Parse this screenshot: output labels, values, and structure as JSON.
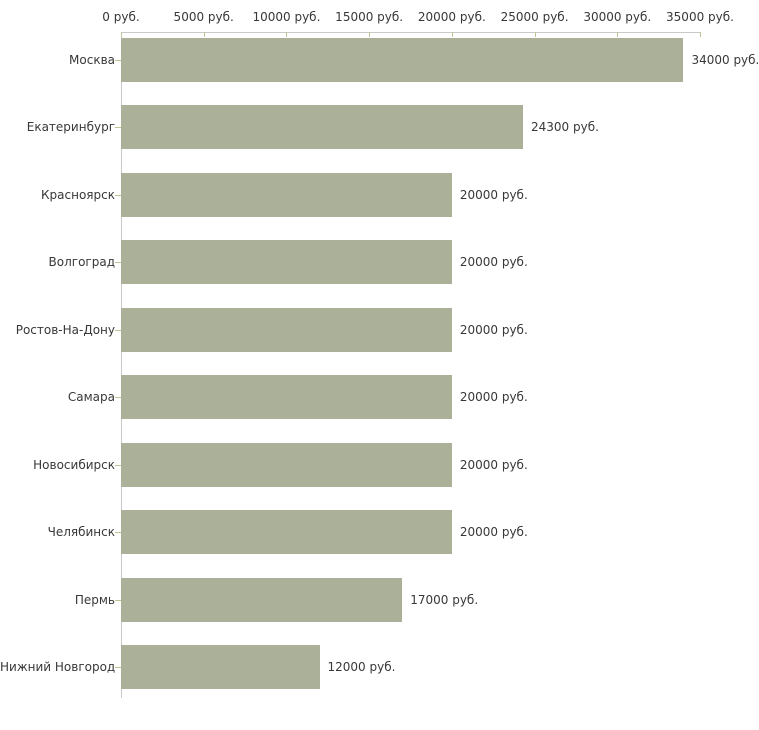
{
  "chart_data": {
    "type": "bar",
    "orientation": "horizontal",
    "title": "",
    "xlabel": "",
    "ylabel": "",
    "categories": [
      "Москва",
      "Екатеринбург",
      "Красноярск",
      "Волгоград",
      "Ростов-На-Дону",
      "Самара",
      "Новосибирск",
      "Челябинск",
      "Пермь",
      "Нижний Новгород"
    ],
    "values": [
      34000,
      24300,
      20000,
      20000,
      20000,
      20000,
      20000,
      20000,
      17000,
      12000
    ],
    "value_labels": [
      "34000 руб.",
      "24300 руб.",
      "20000 руб.",
      "20000 руб.",
      "20000 руб.",
      "20000 руб.",
      "20000 руб.",
      "20000 руб.",
      "17000 руб.",
      "12000 руб."
    ],
    "x_axis": {
      "min": 0,
      "max": 35000,
      "ticks": [
        0,
        5000,
        10000,
        15000,
        20000,
        25000,
        30000,
        35000
      ],
      "tick_labels": [
        "0 руб.",
        "5000 руб.",
        "10000 руб.",
        "15000 руб.",
        "20000 руб.",
        "25000 руб.",
        "30000 руб.",
        "35000 руб."
      ],
      "grid": false
    },
    "legend": "none",
    "colors": {
      "bar": "#abb199",
      "axis": "#c9c9c9",
      "tick": "#bfc494",
      "text": "#383838",
      "background": "#ffffff"
    }
  }
}
